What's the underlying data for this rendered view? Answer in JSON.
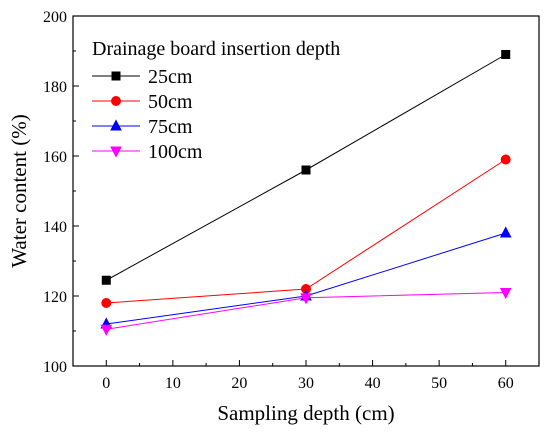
{
  "chart_data": {
    "type": "line",
    "title": "",
    "xlabel": "Sampling depth (cm)",
    "ylabel": "Water content (%)",
    "xlim": [
      -5,
      65
    ],
    "ylim": [
      100,
      200
    ],
    "xticks": [
      0,
      10,
      20,
      30,
      40,
      50,
      60
    ],
    "yticks": [
      100,
      120,
      140,
      160,
      180,
      200
    ],
    "grid": false,
    "legend": {
      "title": "Drainage board insertion depth",
      "placement": "top-left"
    },
    "series": [
      {
        "name": "25cm",
        "color": "#000000",
        "marker": "square",
        "x": [
          0,
          30,
          60
        ],
        "y": [
          124.5,
          156,
          189
        ]
      },
      {
        "name": "50cm",
        "color": "#ff0000",
        "marker": "circle",
        "x": [
          0,
          30,
          60
        ],
        "y": [
          118,
          122,
          159
        ]
      },
      {
        "name": "75cm",
        "color": "#0000ff",
        "marker": "triangle-up",
        "x": [
          0,
          30,
          60
        ],
        "y": [
          112,
          120,
          138
        ]
      },
      {
        "name": "100cm",
        "color": "#ff00ff",
        "marker": "triangle-down",
        "x": [
          0,
          30,
          60
        ],
        "y": [
          110.5,
          119.5,
          121
        ]
      }
    ]
  }
}
